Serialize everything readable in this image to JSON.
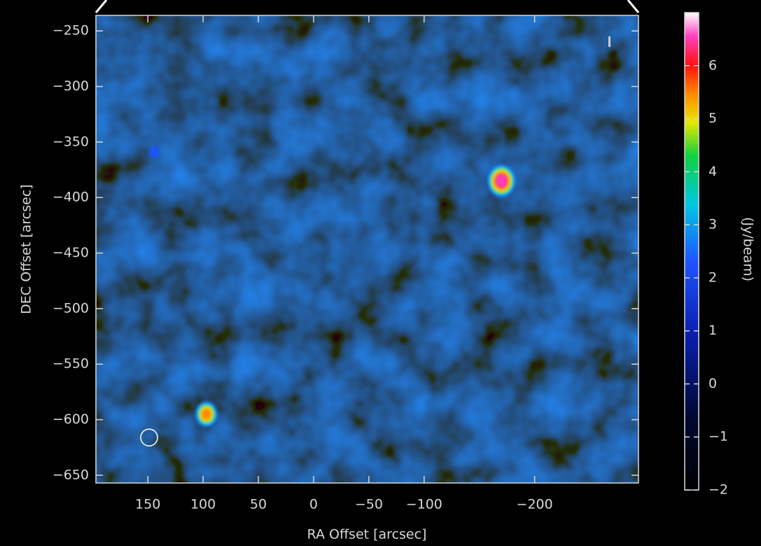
{
  "chart_data": {
    "type": "image",
    "x_label": "RA Offset [arcsec]",
    "y_label": "DEC Offset [arcsec]",
    "colorbar_label": "(Jy/beam)",
    "xlim": [
      197,
      -294
    ],
    "ylim": [
      -657,
      -236
    ],
    "xticks": [
      {
        "value": 150,
        "label": "150"
      },
      {
        "value": 100,
        "label": "100"
      },
      {
        "value": 50,
        "label": "50"
      },
      0,
      {
        "value": -50,
        "label": "−50"
      },
      {
        "value": -100,
        "label": "−100"
      },
      {
        "value": -200,
        "label": "−200"
      }
    ],
    "yticks": [
      {
        "value": -250,
        "label": "−250"
      },
      {
        "value": -300,
        "label": "−300"
      },
      {
        "value": -350,
        "label": "−350"
      },
      {
        "value": -400,
        "label": "−400"
      },
      {
        "value": -450,
        "label": "−450"
      },
      {
        "value": -500,
        "label": "−500"
      },
      {
        "value": -550,
        "label": "−550"
      },
      {
        "value": -600,
        "label": "−600"
      },
      {
        "value": -650,
        "label": "−650"
      }
    ],
    "clim": [
      -2,
      7
    ],
    "cticks": [
      {
        "value": 6,
        "label": "6"
      },
      {
        "value": 5,
        "label": "5"
      },
      {
        "value": 4,
        "label": "4"
      },
      {
        "value": 3,
        "label": "3"
      },
      {
        "value": 2,
        "label": "2"
      },
      {
        "value": 1,
        "label": "1"
      },
      0,
      {
        "value": -1,
        "label": "−1"
      },
      {
        "value": -2,
        "label": "−2"
      }
    ],
    "sources": [
      {
        "ra": -170,
        "dec": -385,
        "peak": 6.6
      },
      {
        "ra": 97,
        "dec": -595,
        "peak": 6.0
      },
      {
        "ra": 144,
        "dec": -359,
        "peak": 3.0
      }
    ]
  }
}
